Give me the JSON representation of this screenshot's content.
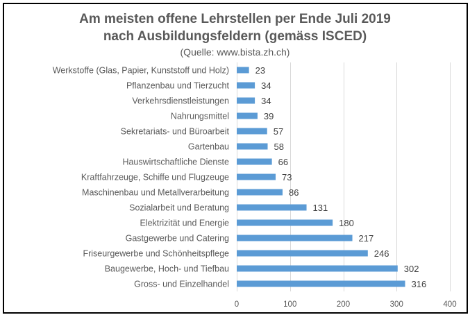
{
  "chart_data": {
    "type": "bar",
    "orientation": "horizontal",
    "title": "Am meisten offene Lehrstellen per Ende Juli 2019",
    "title_line2": "nach Ausbildungsfeldern (gemäss ISCED)",
    "subtitle": "(Quelle: www.bista.zh.ch)",
    "xlabel": "",
    "ylabel": "",
    "xlim": [
      0,
      400
    ],
    "x_ticks": [
      0,
      100,
      200,
      300,
      400
    ],
    "x_tick_labels": [
      "0",
      "100",
      "200",
      "300",
      "400"
    ],
    "grid": "vertical",
    "legend": "none",
    "bar_color": "#5B9BD5",
    "categories": [
      "Werkstoffe (Glas, Papier, Kunststoff und Holz)",
      "Pflanzenbau und Tierzucht",
      "Verkehrsdienstleistungen",
      "Nahrungsmittel",
      "Sekretariats- und Büroarbeit",
      "Gartenbau",
      "Hauswirtschaftliche Dienste",
      "Kraftfahrzeuge, Schiffe und Flugzeuge",
      "Maschinenbau und Metallverarbeitung",
      "Sozialarbeit und Beratung",
      "Elektrizität und Energie",
      "Gastgewerbe und Catering",
      "Friseurgewerbe und Schönheitspflege",
      "Baugewerbe, Hoch- und Tiefbau",
      "Gross- und Einzelhandel"
    ],
    "values": [
      23,
      34,
      34,
      39,
      57,
      58,
      66,
      73,
      86,
      131,
      180,
      217,
      246,
      302,
      316
    ],
    "value_labels": [
      "23",
      "34",
      "34",
      "39",
      "57",
      "58",
      "66",
      "73",
      "86",
      "131",
      "180",
      "217",
      "246",
      "302",
      "316"
    ]
  }
}
